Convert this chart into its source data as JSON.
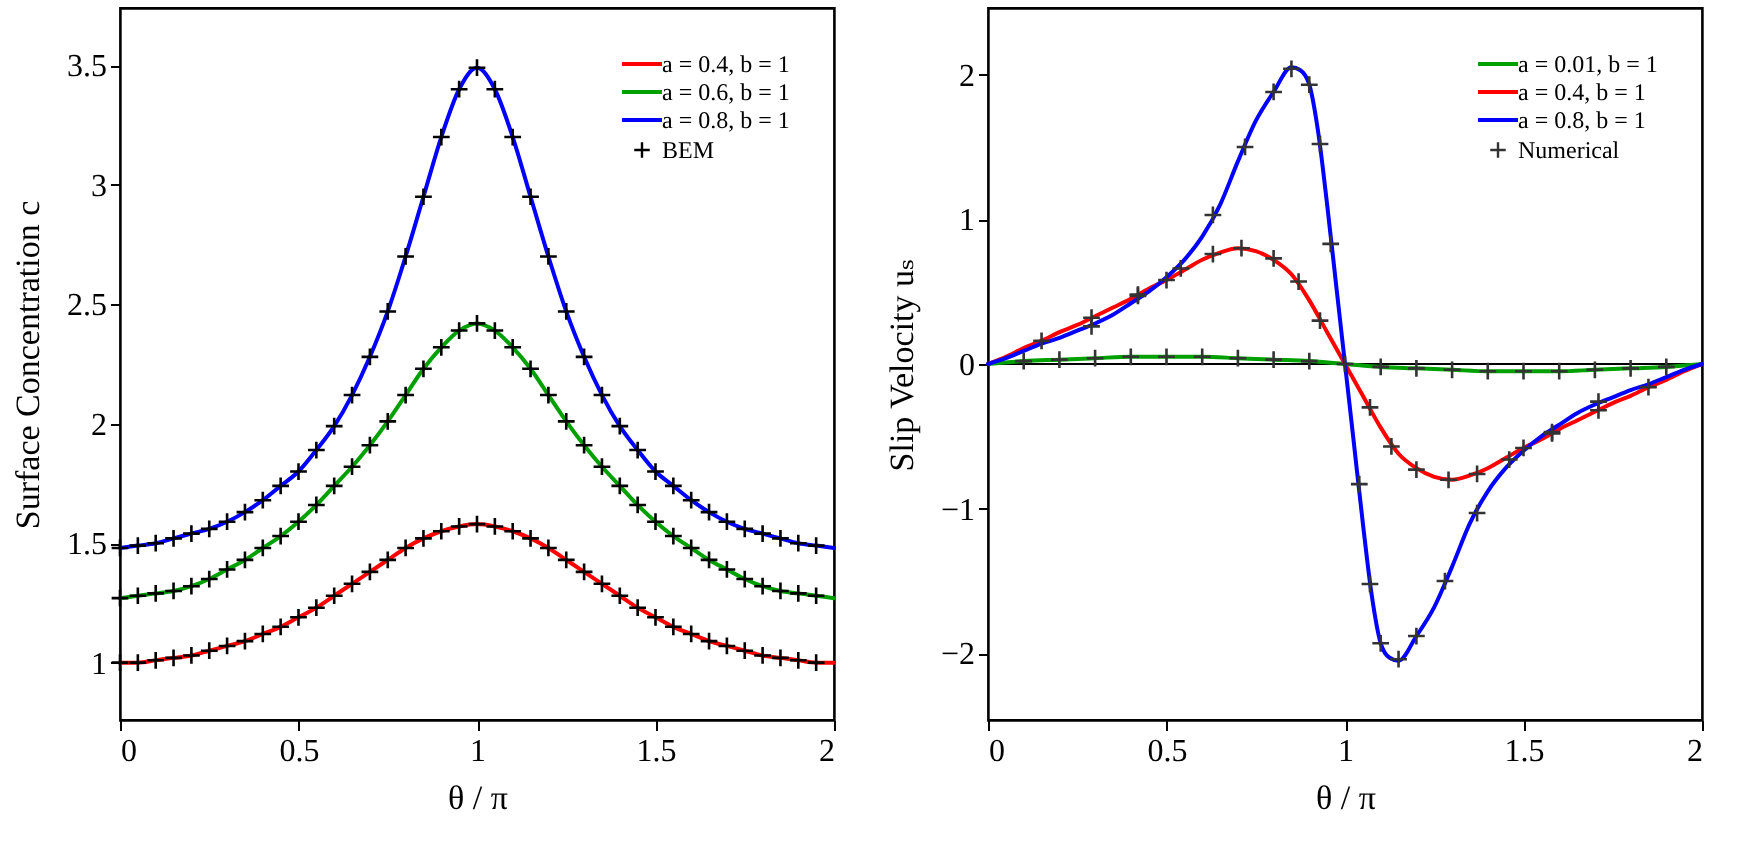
{
  "chart_data": [
    {
      "type": "line",
      "xlabel": "θ / π",
      "ylabel": "Surface Concentration c",
      "xlim": [
        0,
        2
      ],
      "ylim": [
        0.76,
        3.74
      ],
      "xticks": [
        0,
        0.5,
        1,
        1.5,
        2
      ],
      "yticks": [
        1,
        1.5,
        2,
        2.5,
        3,
        3.5
      ],
      "grid": false,
      "legend": "top right",
      "x": [
        0,
        0.05,
        0.1,
        0.15,
        0.2,
        0.25,
        0.3,
        0.35,
        0.4,
        0.45,
        0.5,
        0.55,
        0.6,
        0.65,
        0.7,
        0.75,
        0.8,
        0.85,
        0.9,
        0.95,
        1,
        1.05,
        1.1,
        1.15,
        1.2,
        1.25,
        1.3,
        1.35,
        1.4,
        1.45,
        1.5,
        1.55,
        1.6,
        1.65,
        1.7,
        1.75,
        1.8,
        1.85,
        1.9,
        1.95,
        2
      ],
      "series": [
        {
          "name": "a = 0.4, b = 1",
          "color": "#ff0000",
          "values": [
            1.0,
            1.0,
            1.01,
            1.02,
            1.03,
            1.05,
            1.07,
            1.09,
            1.12,
            1.15,
            1.19,
            1.23,
            1.28,
            1.33,
            1.38,
            1.43,
            1.48,
            1.52,
            1.55,
            1.57,
            1.58,
            1.57,
            1.55,
            1.52,
            1.48,
            1.43,
            1.38,
            1.33,
            1.28,
            1.23,
            1.19,
            1.15,
            1.12,
            1.09,
            1.07,
            1.05,
            1.03,
            1.02,
            1.01,
            1.0,
            1.0
          ]
        },
        {
          "name": "a = 0.6, b = 1",
          "color": "#00a000",
          "values": [
            1.27,
            1.28,
            1.29,
            1.3,
            1.32,
            1.35,
            1.39,
            1.43,
            1.48,
            1.53,
            1.59,
            1.66,
            1.74,
            1.82,
            1.91,
            2.01,
            2.12,
            2.23,
            2.32,
            2.39,
            2.42,
            2.39,
            2.32,
            2.23,
            2.12,
            2.01,
            1.91,
            1.82,
            1.74,
            1.66,
            1.59,
            1.53,
            1.48,
            1.43,
            1.39,
            1.35,
            1.32,
            1.3,
            1.29,
            1.28,
            1.27
          ]
        },
        {
          "name": "a = 0.8, b = 1",
          "color": "#0000ff",
          "values": [
            1.48,
            1.49,
            1.5,
            1.52,
            1.54,
            1.56,
            1.59,
            1.63,
            1.68,
            1.74,
            1.8,
            1.89,
            1.99,
            2.12,
            2.28,
            2.47,
            2.7,
            2.95,
            3.2,
            3.4,
            3.49,
            3.4,
            3.2,
            2.95,
            2.7,
            2.47,
            2.28,
            2.12,
            1.99,
            1.89,
            1.8,
            1.74,
            1.68,
            1.63,
            1.59,
            1.56,
            1.54,
            1.52,
            1.5,
            1.49,
            1.48
          ]
        },
        {
          "name": "BEM",
          "type": "scatter",
          "marker": "cross",
          "color": "#000000",
          "x": [
            0,
            0.05,
            0.1,
            0.15,
            0.2,
            0.25,
            0.3,
            0.35,
            0.4,
            0.45,
            0.5,
            0.55,
            0.6,
            0.65,
            0.7,
            0.75,
            0.8,
            0.85,
            0.9,
            0.95,
            1,
            1.05,
            1.1,
            1.15,
            1.2,
            1.25,
            1.3,
            1.35,
            1.4,
            1.45,
            1.5,
            1.55,
            1.6,
            1.65,
            1.7,
            1.75,
            1.8,
            1.85,
            1.9,
            1.95
          ],
          "values": [
            1.0,
            1.0,
            1.01,
            1.02,
            1.03,
            1.05,
            1.07,
            1.09,
            1.12,
            1.15,
            1.19,
            1.23,
            1.28,
            1.33,
            1.38,
            1.43,
            1.48,
            1.52,
            1.55,
            1.57,
            1.58,
            1.57,
            1.55,
            1.52,
            1.48,
            1.43,
            1.38,
            1.33,
            1.28,
            1.23,
            1.19,
            1.15,
            1.12,
            1.09,
            1.07,
            1.05,
            1.03,
            1.02,
            1.01,
            1.0
          ]
        },
        {
          "type": "scatter",
          "marker": "cross",
          "color": "#000000",
          "x": [
            0,
            0.05,
            0.1,
            0.15,
            0.2,
            0.25,
            0.3,
            0.35,
            0.4,
            0.45,
            0.5,
            0.55,
            0.6,
            0.65,
            0.7,
            0.75,
            0.8,
            0.85,
            0.9,
            0.95,
            1,
            1.05,
            1.1,
            1.15,
            1.2,
            1.25,
            1.3,
            1.35,
            1.4,
            1.45,
            1.5,
            1.55,
            1.6,
            1.65,
            1.7,
            1.75,
            1.8,
            1.85,
            1.9,
            1.95
          ],
          "values": [
            1.27,
            1.28,
            1.29,
            1.3,
            1.32,
            1.35,
            1.39,
            1.43,
            1.48,
            1.53,
            1.59,
            1.66,
            1.74,
            1.82,
            1.91,
            2.01,
            2.12,
            2.23,
            2.32,
            2.39,
            2.42,
            2.39,
            2.32,
            2.23,
            2.12,
            2.01,
            1.91,
            1.82,
            1.74,
            1.66,
            1.59,
            1.53,
            1.48,
            1.43,
            1.39,
            1.35,
            1.32,
            1.3,
            1.29,
            1.28
          ]
        },
        {
          "type": "scatter",
          "marker": "cross",
          "color": "#000000",
          "x": [
            0,
            0.05,
            0.1,
            0.15,
            0.2,
            0.25,
            0.3,
            0.35,
            0.4,
            0.45,
            0.5,
            0.55,
            0.6,
            0.65,
            0.7,
            0.75,
            0.8,
            0.85,
            0.9,
            0.95,
            1,
            1.05,
            1.1,
            1.15,
            1.2,
            1.25,
            1.3,
            1.35,
            1.4,
            1.45,
            1.5,
            1.55,
            1.6,
            1.65,
            1.7,
            1.75,
            1.8,
            1.85,
            1.9,
            1.95
          ],
          "values": [
            1.48,
            1.49,
            1.5,
            1.52,
            1.54,
            1.56,
            1.59,
            1.63,
            1.68,
            1.74,
            1.8,
            1.89,
            1.99,
            2.12,
            2.28,
            2.47,
            2.7,
            2.95,
            3.2,
            3.4,
            3.49,
            3.4,
            3.2,
            2.95,
            2.7,
            2.47,
            2.28,
            2.12,
            1.99,
            1.89,
            1.8,
            1.74,
            1.68,
            1.63,
            1.59,
            1.56,
            1.54,
            1.52,
            1.5,
            1.49
          ]
        }
      ]
    },
    {
      "type": "line",
      "xlabel": "θ / π",
      "ylabel": "Slip Velocity uₛ",
      "xlim": [
        0,
        2
      ],
      "ylim": [
        -2.46,
        2.46
      ],
      "xticks": [
        0,
        0.5,
        1,
        1.5,
        2
      ],
      "yticks": [
        -2,
        -1,
        0,
        1,
        2
      ],
      "grid": false,
      "legend": "top right",
      "ref_lines": [
        {
          "axis": "y",
          "value": 0,
          "color": "#000000"
        }
      ],
      "series": [
        {
          "name": "a = 0.01, b = 1",
          "color": "#00a000",
          "x": [
            0,
            0.1,
            0.2,
            0.3,
            0.4,
            0.5,
            0.6,
            0.7,
            0.8,
            0.9,
            1,
            1.1,
            1.2,
            1.3,
            1.4,
            1.5,
            1.6,
            1.7,
            1.8,
            1.9,
            2
          ],
          "values": [
            0,
            0.02,
            0.03,
            0.04,
            0.05,
            0.05,
            0.05,
            0.04,
            0.03,
            0.02,
            0,
            -0.02,
            -0.03,
            -0.04,
            -0.05,
            -0.05,
            -0.05,
            -0.04,
            -0.03,
            -0.02,
            0
          ]
        },
        {
          "name": "a = 0.4, b = 1",
          "color": "#ff0000",
          "x": [
            0,
            0.05,
            0.1,
            0.15,
            0.2,
            0.25,
            0.3,
            0.35,
            0.4,
            0.45,
            0.5,
            0.55,
            0.6,
            0.65,
            0.7,
            0.75,
            0.8,
            0.85,
            0.9,
            0.95,
            1,
            1.05,
            1.1,
            1.15,
            1.2,
            1.25,
            1.3,
            1.35,
            1.4,
            1.45,
            1.5,
            1.55,
            1.6,
            1.65,
            1.7,
            1.75,
            1.8,
            1.85,
            1.9,
            1.95,
            2
          ],
          "values": [
            0,
            0.05,
            0.11,
            0.16,
            0.22,
            0.27,
            0.33,
            0.39,
            0.45,
            0.52,
            0.58,
            0.65,
            0.72,
            0.77,
            0.8,
            0.78,
            0.72,
            0.62,
            0.44,
            0.22,
            0,
            -0.22,
            -0.44,
            -0.62,
            -0.72,
            -0.78,
            -0.8,
            -0.77,
            -0.72,
            -0.65,
            -0.58,
            -0.52,
            -0.45,
            -0.39,
            -0.33,
            -0.27,
            -0.22,
            -0.16,
            -0.11,
            -0.05,
            0
          ]
        },
        {
          "name": "a = 0.8, b = 1",
          "color": "#0000ff",
          "x": [
            0,
            0.05,
            0.1,
            0.15,
            0.2,
            0.25,
            0.3,
            0.35,
            0.4,
            0.45,
            0.5,
            0.55,
            0.6,
            0.65,
            0.7,
            0.75,
            0.8,
            0.85,
            0.875,
            0.9,
            0.925,
            0.95,
            0.975,
            1,
            1.025,
            1.05,
            1.075,
            1.1,
            1.125,
            1.15,
            1.2,
            1.25,
            1.3,
            1.35,
            1.4,
            1.45,
            1.5,
            1.55,
            1.6,
            1.65,
            1.7,
            1.75,
            1.8,
            1.85,
            1.9,
            1.95,
            2
          ],
          "values": [
            0,
            0.04,
            0.09,
            0.14,
            0.18,
            0.23,
            0.28,
            0.34,
            0.42,
            0.5,
            0.6,
            0.72,
            0.88,
            1.1,
            1.4,
            1.68,
            1.88,
            2.05,
            2.03,
            1.93,
            1.6,
            1.1,
            0.55,
            0,
            -0.55,
            -1.1,
            -1.6,
            -1.93,
            -2.03,
            -2.05,
            -1.88,
            -1.68,
            -1.4,
            -1.1,
            -0.88,
            -0.72,
            -0.6,
            -0.5,
            -0.42,
            -0.34,
            -0.28,
            -0.23,
            -0.18,
            -0.14,
            -0.09,
            -0.04,
            0
          ]
        },
        {
          "name": "Numerical",
          "type": "scatter",
          "marker": "cross",
          "color": "#333333",
          "x": [
            0.1,
            0.2,
            0.3,
            0.4,
            0.5,
            0.6,
            0.7,
            0.8,
            0.9,
            1,
            1.1,
            1.2,
            1.3,
            1.4,
            1.5,
            1.6,
            1.7,
            1.8,
            1.9
          ],
          "values": [
            0.02,
            0.03,
            0.04,
            0.05,
            0.05,
            0.05,
            0.04,
            0.03,
            0.02,
            0,
            -0.02,
            -0.03,
            -0.04,
            -0.05,
            -0.05,
            -0.05,
            -0.04,
            -0.03,
            -0.02
          ]
        },
        {
          "type": "scatter",
          "marker": "cross",
          "color": "#333333",
          "x": [
            0.15,
            0.29,
            0.42,
            0.5,
            0.63,
            0.71,
            0.8,
            0.87,
            0.93,
            1.07,
            1.13,
            1.2,
            1.29,
            1.37,
            1.5,
            1.58,
            1.71,
            1.85
          ],
          "values": [
            0.16,
            0.32,
            0.48,
            0.58,
            0.76,
            0.8,
            0.73,
            0.57,
            0.3,
            -0.3,
            -0.57,
            -0.73,
            -0.8,
            -0.76,
            -0.58,
            -0.48,
            -0.32,
            -0.16
          ]
        },
        {
          "type": "scatter",
          "marker": "cross",
          "color": "#333333",
          "x": [
            0.29,
            0.42,
            0.54,
            0.63,
            0.72,
            0.8,
            0.85,
            0.9,
            0.93,
            0.96,
            1.04,
            1.07,
            1.1,
            1.15,
            1.2,
            1.28,
            1.37,
            1.46,
            1.58,
            1.71
          ],
          "values": [
            0.26,
            0.47,
            0.66,
            1.03,
            1.5,
            1.88,
            2.04,
            1.93,
            1.52,
            0.83,
            -0.83,
            -1.52,
            -1.93,
            -2.04,
            -1.88,
            -1.5,
            -1.03,
            -0.66,
            -0.47,
            -0.26
          ]
        }
      ]
    }
  ]
}
